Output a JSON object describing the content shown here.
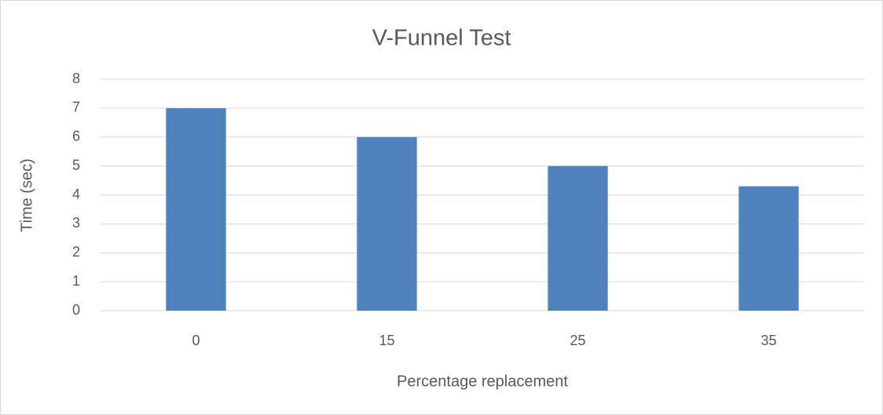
{
  "chart_data": {
    "type": "bar",
    "title": "V-Funnel Test",
    "x_label": "Percentage replacement",
    "y_label": "Time (sec)",
    "categories": [
      "0",
      "15",
      "25",
      "35"
    ],
    "values": [
      7,
      6,
      5,
      4.3
    ],
    "color": "#4f81bd",
    "ylim": [
      0,
      8
    ],
    "yticks": [
      0,
      1,
      2,
      3,
      4,
      5,
      6,
      7,
      8
    ],
    "grid": true
  }
}
